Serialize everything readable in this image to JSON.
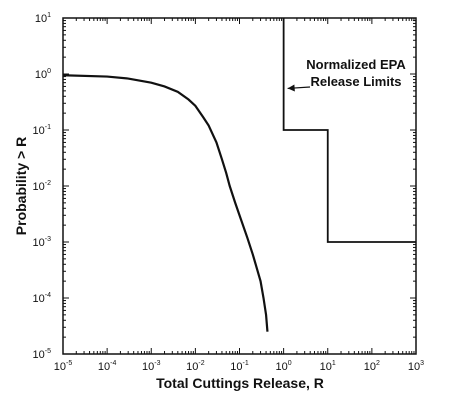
{
  "chart_data": {
    "type": "line",
    "title": "",
    "xlabel": "Total Cuttings Release, R",
    "ylabel": "Probability > R",
    "x_scale": "log",
    "y_scale": "log",
    "xlim": [
      1e-05,
      1000
    ],
    "ylim": [
      1e-05,
      10
    ],
    "grid": false,
    "x_ticks": [
      {
        "base": "10",
        "exp": "-5"
      },
      {
        "base": "10",
        "exp": "-4"
      },
      {
        "base": "10",
        "exp": "-3"
      },
      {
        "base": "10",
        "exp": "-2"
      },
      {
        "base": "10",
        "exp": "-1"
      },
      {
        "base": "10",
        "exp": "0"
      },
      {
        "base": "10",
        "exp": "1"
      },
      {
        "base": "10",
        "exp": "2"
      },
      {
        "base": "10",
        "exp": "3"
      }
    ],
    "y_ticks": [
      {
        "base": "10",
        "exp": "1"
      },
      {
        "base": "10",
        "exp": "0"
      },
      {
        "base": "10",
        "exp": "-1"
      },
      {
        "base": "10",
        "exp": "-2"
      },
      {
        "base": "10",
        "exp": "-3"
      },
      {
        "base": "10",
        "exp": "-4"
      },
      {
        "base": "10",
        "exp": "-5"
      }
    ],
    "annotation": {
      "lines": [
        "Normalized EPA",
        "Release Limits"
      ],
      "arrow_target": {
        "x": 1.0,
        "y": 0.6
      }
    },
    "series": [
      {
        "points": [
          {
            "x": 1e-05,
            "y": 0.95
          },
          {
            "x": 0.0001,
            "y": 0.9
          },
          {
            "x": 0.0003,
            "y": 0.83
          },
          {
            "x": 0.001,
            "y": 0.7
          },
          {
            "x": 0.002,
            "y": 0.6
          },
          {
            "x": 0.004,
            "y": 0.48
          },
          {
            "x": 0.007,
            "y": 0.35
          },
          {
            "x": 0.01,
            "y": 0.27
          },
          {
            "x": 0.015,
            "y": 0.17
          },
          {
            "x": 0.02,
            "y": 0.12
          },
          {
            "x": 0.03,
            "y": 0.06
          },
          {
            "x": 0.04,
            "y": 0.03
          },
          {
            "x": 0.05,
            "y": 0.017
          },
          {
            "x": 0.06,
            "y": 0.01
          },
          {
            "x": 0.08,
            "y": 0.005
          },
          {
            "x": 0.1,
            "y": 0.003
          },
          {
            "x": 0.15,
            "y": 0.0012
          },
          {
            "x": 0.2,
            "y": 0.0006
          },
          {
            "x": 0.3,
            "y": 0.0002
          },
          {
            "x": 0.35,
            "y": 0.0001
          },
          {
            "x": 0.4,
            "y": 5e-05
          },
          {
            "x": 0.43,
            "y": 2.5e-05
          }
        ]
      },
      {
        "points": [
          {
            "x": 1,
            "y": 10
          },
          {
            "x": 1,
            "y": 0.1
          },
          {
            "x": 10,
            "y": 0.1
          },
          {
            "x": 10,
            "y": 0.001
          },
          {
            "x": 1000,
            "y": 0.001
          }
        ]
      }
    ]
  }
}
